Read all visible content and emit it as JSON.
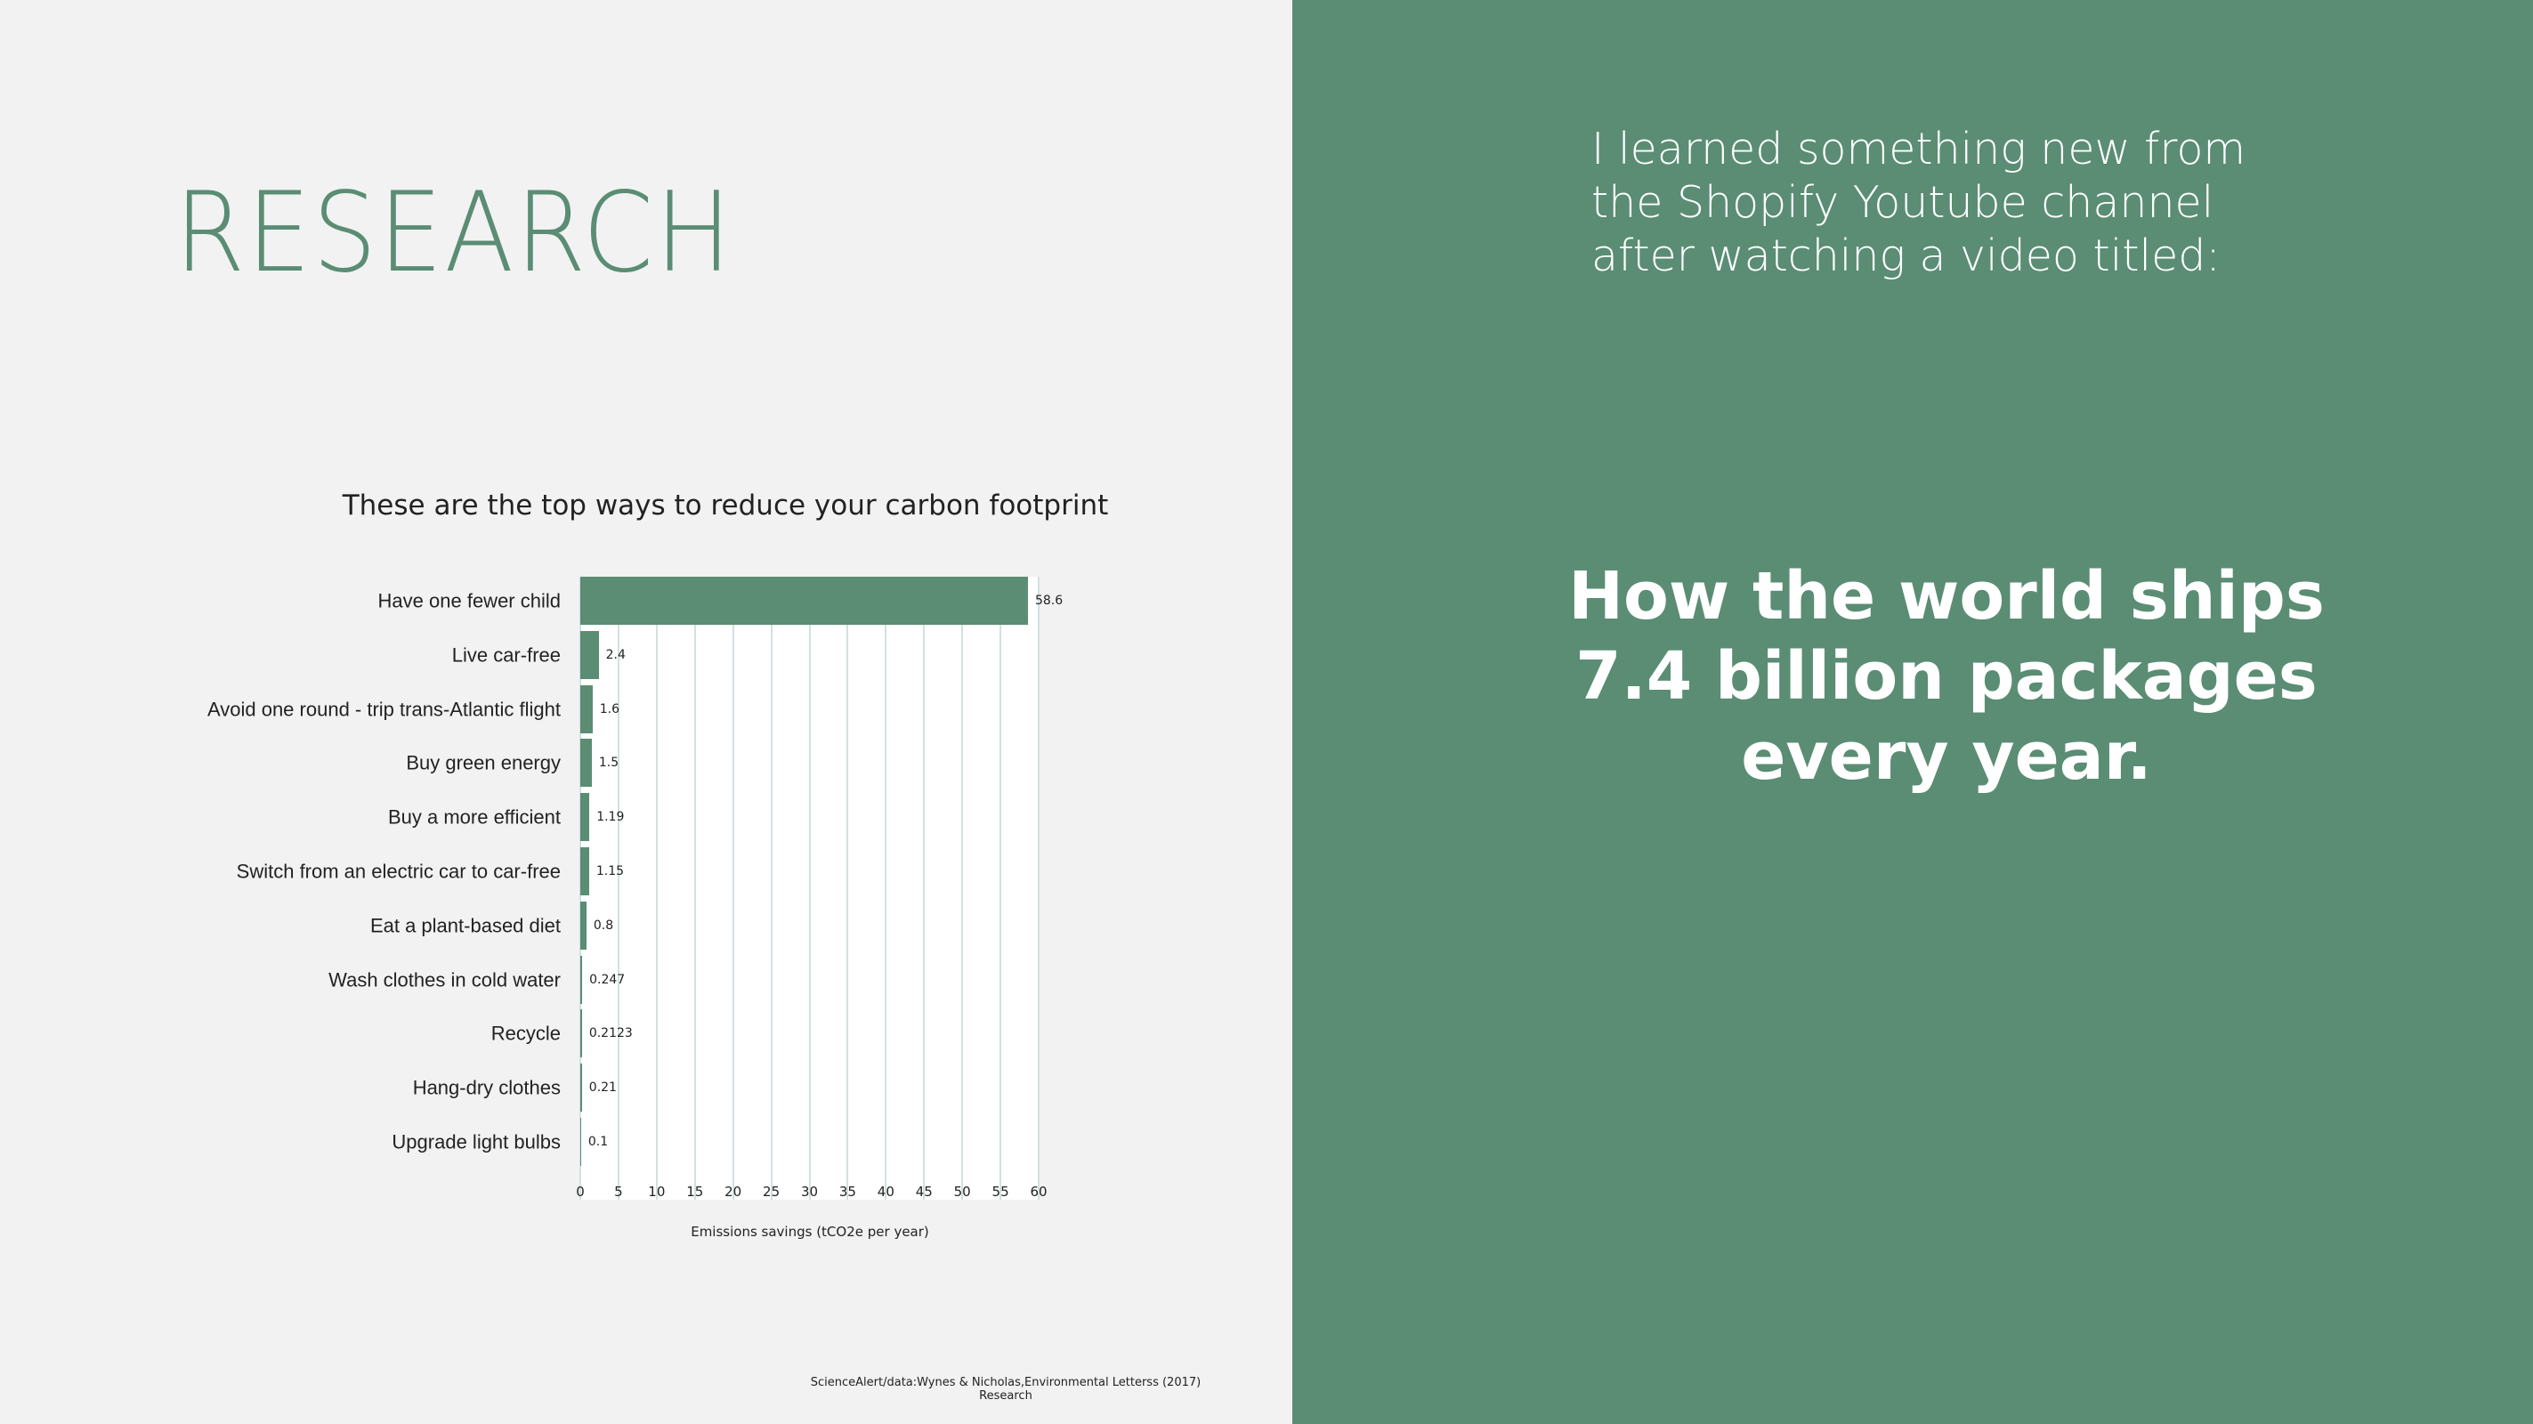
{
  "slide": {
    "heading": "RESEARCH",
    "intro": "I learned something new from the Shopify Youtube channel after watching  a video titled:",
    "video_title": "How the world ships 7.4 billion packages every year.",
    "source": "ScienceAlert/data:Wynes & Nicholas,Environmental Letterss (2017) Research"
  },
  "chart_data": {
    "type": "bar",
    "orientation": "horizontal",
    "title": "These are the top ways to reduce your carbon footprint",
    "x_label": "Emissions savings (tCO2e per year)",
    "categories": [
      "Have one fewer child",
      "Live car-free",
      "Avoid one round - trip trans-Atlantic flight",
      "Buy green energy",
      "Buy a more efficient",
      "Switch from an electric car to car-free",
      "Eat a plant-based diet",
      "Wash clothes in cold water",
      "Recycle",
      "Hang-dry clothes",
      "Upgrade light bulbs"
    ],
    "values": [
      58.6,
      2.4,
      1.6,
      1.5,
      1.19,
      1.15,
      0.8,
      0.247,
      0.2123,
      0.21,
      0.1
    ],
    "color": "#5a8d74",
    "xlim": [
      0,
      60
    ],
    "xticks": [
      0,
      5,
      10,
      15,
      20,
      25,
      30,
      35,
      40,
      45,
      50,
      55,
      60
    ],
    "grid": true
  }
}
